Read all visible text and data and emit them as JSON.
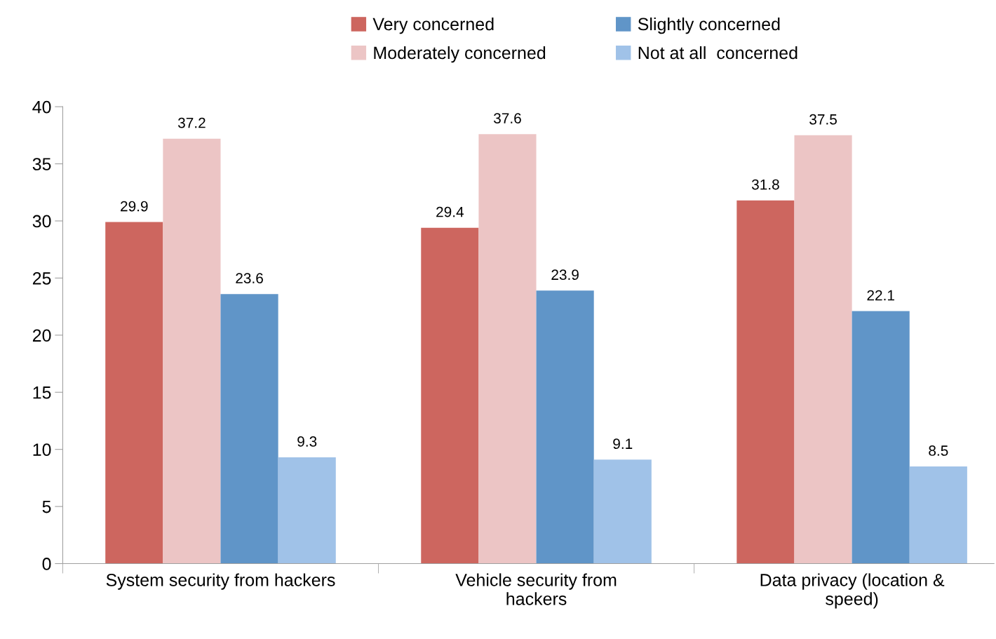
{
  "chart_data": {
    "type": "bar",
    "categories": [
      "System security from hackers",
      "Vehicle security from hackers",
      "Data privacy (location & speed)"
    ],
    "series": [
      {
        "name": "Very concerned",
        "color": "#cd665f",
        "values": [
          29.9,
          29.4,
          31.8
        ]
      },
      {
        "name": "Moderately concerned",
        "color": "#ecc5c5",
        "values": [
          37.2,
          37.6,
          37.5
        ]
      },
      {
        "name": "Slightly concerned",
        "color": "#6095c8",
        "values": [
          23.6,
          23.9,
          22.1
        ]
      },
      {
        "name": "Not at all  concerned",
        "color": "#a0c2e8",
        "values": [
          9.3,
          9.1,
          8.5
        ]
      }
    ],
    "ylim": [
      0,
      40
    ],
    "yticks": [
      0,
      5,
      10,
      15,
      20,
      25,
      30,
      35,
      40
    ],
    "data_labels": true,
    "grid": false,
    "legend": "top"
  }
}
